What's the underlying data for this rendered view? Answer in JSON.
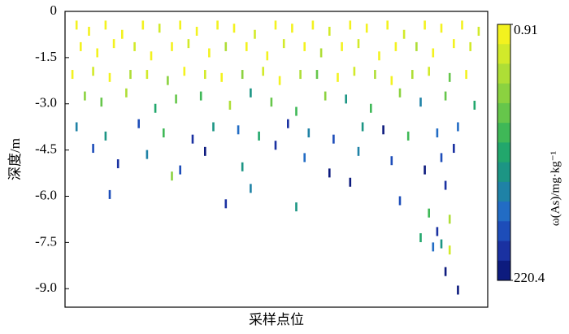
{
  "chart_data": {
    "type": "segment",
    "xlabel": "采样点位",
    "ylabel": "深度/m",
    "colorbar_label": "ω(As)/mg·kg⁻¹",
    "xlim": [
      0,
      100
    ],
    "ylim": [
      -9.6,
      0
    ],
    "yticks": [
      0,
      -1.5,
      {
        "value": -3,
        "label": "-3.0"
      },
      -4.5,
      {
        "value": -6,
        "label": "-6.0"
      },
      -7.5,
      {
        "value": -9,
        "label": "-9.0"
      }
    ],
    "clim": [
      0.91,
      220.4
    ],
    "cticks": [
      0.91,
      220.4
    ],
    "colorscale": [
      "#f3f21f",
      "#d2ea2a",
      "#aede36",
      "#8bd240",
      "#66c64b",
      "#3fb857",
      "#22a76c",
      "#1c9584",
      "#1f82a6",
      "#226cc4",
      "#1d4db9",
      "#1a31a1",
      "#0d1b7e"
    ],
    "grid": false,
    "x": [
      2,
      5,
      9,
      13,
      18,
      22,
      27,
      31,
      36,
      40,
      45,
      50,
      54,
      59,
      63,
      68,
      72,
      77,
      81,
      86,
      90,
      95,
      99,
      3,
      7,
      11,
      16,
      20,
      25,
      29,
      34,
      38,
      43,
      48,
      52,
      57,
      61,
      66,
      70,
      75,
      79,
      84,
      88,
      93,
      97,
      1,
      6,
      10,
      15,
      19,
      24,
      28,
      33,
      37,
      42,
      47,
      51,
      56,
      60,
      65,
      69,
      74,
      78,
      83,
      87,
      92,
      96,
      4,
      8,
      14,
      21,
      26,
      32,
      39,
      44,
      49,
      55,
      62,
      67,
      73,
      80,
      85,
      91,
      98,
      2,
      9,
      17,
      23,
      30,
      35,
      41,
      46,
      53,
      58,
      64,
      71,
      76,
      82,
      89,
      94,
      6,
      12,
      19,
      27,
      33,
      42,
      50,
      57,
      63,
      70,
      78,
      86,
      90,
      93,
      10,
      25,
      38,
      44,
      55,
      68,
      80,
      87,
      91,
      92,
      85,
      88,
      89,
      90,
      91,
      92,
      94
    ],
    "depth": [
      -0.3,
      -0.5,
      -0.3,
      -0.6,
      -0.3,
      -0.4,
      -0.3,
      -0.5,
      -0.3,
      -0.4,
      -0.6,
      -0.3,
      -0.4,
      -0.3,
      -0.5,
      -0.3,
      -0.4,
      -0.3,
      -0.6,
      -0.3,
      -0.4,
      -0.3,
      -0.5,
      -1.0,
      -1.2,
      -0.9,
      -1.0,
      -1.3,
      -1.0,
      -0.9,
      -1.2,
      -1.0,
      -1.0,
      -1.3,
      -0.9,
      -1.0,
      -1.2,
      -1.0,
      -0.9,
      -1.3,
      -1.0,
      -1.0,
      -1.2,
      -0.9,
      -1.0,
      -1.9,
      -1.8,
      -2.0,
      -1.9,
      -1.9,
      -2.1,
      -1.8,
      -1.9,
      -2.0,
      -1.9,
      -1.8,
      -2.1,
      -1.9,
      -1.9,
      -2.0,
      -1.8,
      -1.9,
      -2.1,
      -1.9,
      -1.8,
      -2.0,
      -1.9,
      -2.6,
      -2.8,
      -2.5,
      -3.0,
      -2.7,
      -2.6,
      -2.9,
      -2.5,
      -2.8,
      -3.1,
      -2.6,
      -2.7,
      -3.0,
      -2.5,
      -2.8,
      -2.6,
      -2.9,
      -3.6,
      -3.9,
      -3.5,
      -3.8,
      -4.0,
      -3.6,
      -3.7,
      -3.9,
      -3.5,
      -3.8,
      -4.0,
      -3.6,
      -3.7,
      -3.9,
      -3.8,
      -3.6,
      -4.3,
      -4.8,
      -4.5,
      -5.0,
      -4.4,
      -4.9,
      -4.2,
      -4.6,
      -5.1,
      -4.4,
      -4.7,
      -5.0,
      -4.6,
      -4.3,
      -5.8,
      -5.2,
      -6.1,
      -5.6,
      -6.2,
      -5.4,
      -6.0,
      -6.4,
      -5.5,
      -6.6,
      -7.2,
      -7.5,
      -7.0,
      -7.4,
      -8.3,
      -7.6,
      -8.9
    ],
    "values": [
      2,
      5,
      12,
      8,
      3,
      20,
      6,
      15,
      4,
      9,
      25,
      3,
      11,
      7,
      18,
      2,
      14,
      5,
      30,
      4,
      10,
      6,
      22,
      8,
      15,
      5,
      30,
      12,
      6,
      22,
      9,
      40,
      14,
      7,
      18,
      10,
      35,
      6,
      25,
      12,
      8,
      45,
      16,
      9,
      20,
      12,
      25,
      8,
      40,
      18,
      55,
      10,
      30,
      15,
      60,
      22,
      9,
      35,
      70,
      14,
      28,
      45,
      12,
      50,
      20,
      80,
      16,
      60,
      85,
      40,
      110,
      75,
      95,
      50,
      130,
      70,
      100,
      65,
      120,
      90,
      55,
      140,
      80,
      105,
      150,
      120,
      180,
      95,
      200,
      135,
      160,
      110,
      190,
      140,
      175,
      125,
      210,
      100,
      165,
      155,
      170,
      200,
      140,
      185,
      210,
      125,
      195,
      160,
      215,
      150,
      180,
      205,
      175,
      190,
      180,
      60,
      200,
      150,
      120,
      210,
      170,
      90,
      195,
      45,
      110,
      160,
      200,
      130,
      215,
      30,
      220
    ]
  }
}
